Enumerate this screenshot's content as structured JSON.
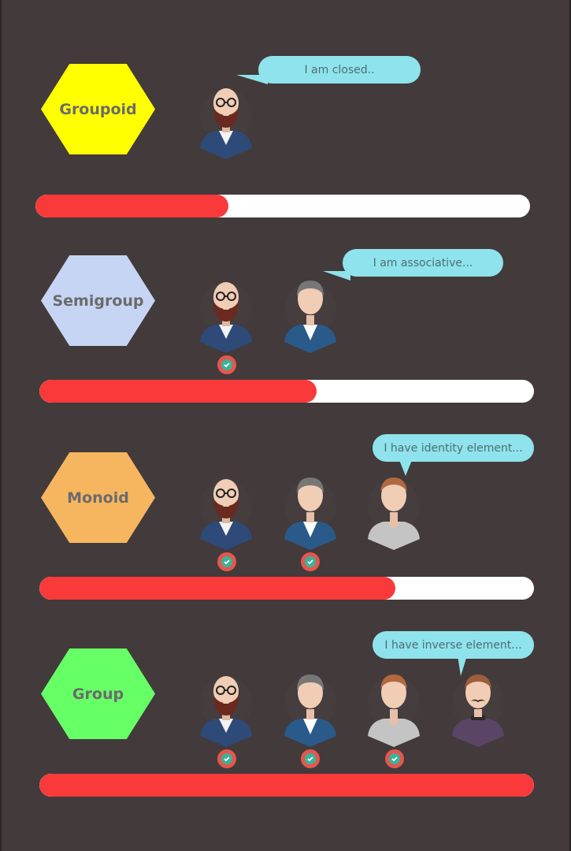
{
  "sections": [
    {
      "label": "Groupoid",
      "hex_color": "#ffff00",
      "bubble": "I am closed..",
      "progress": 0.39
    },
    {
      "label": "Semigroup",
      "hex_color": "#c5d5f3",
      "bubble": "I am associative...",
      "progress": 0.56
    },
    {
      "label": "Monoid",
      "hex_color": "#f6b660",
      "bubble": "I have identity element...",
      "progress": 0.72
    },
    {
      "label": "Group",
      "hex_color": "#66ff66",
      "bubble": "I have inverse element...",
      "progress": 1.0
    }
  ],
  "colors": {
    "background": "#433a3b",
    "progress_fill": "#f9393a",
    "progress_track": "#ffffff",
    "bubble": "#8fe3ec",
    "check_outer": "#e4574d",
    "check_inner": "#3bb39a"
  }
}
